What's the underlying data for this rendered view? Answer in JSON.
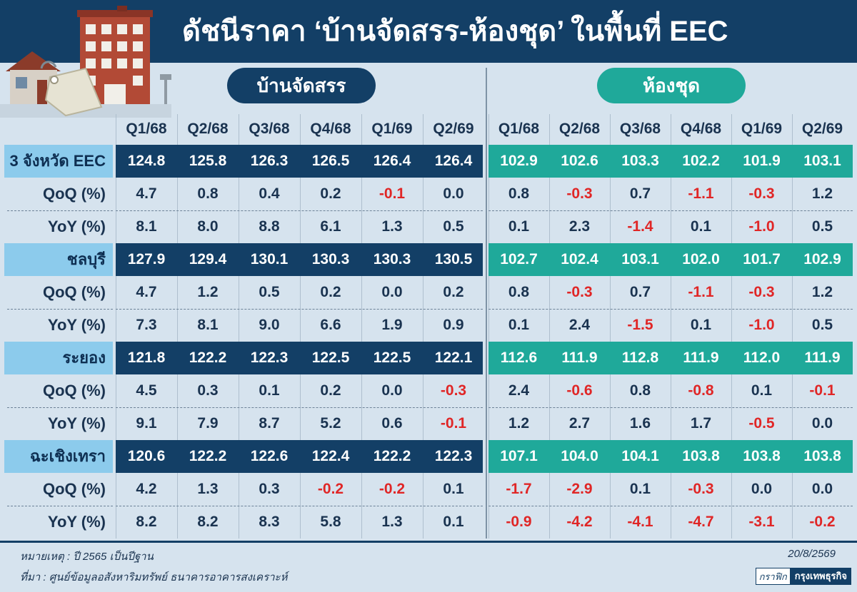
{
  "title": "ดัชนีราคา ‘บ้านจัดสรร-ห้องชุด’ ในพื้นที่ EEC",
  "sections": {
    "house": "บ้านจัดสรร",
    "condo": "ห้องชุด"
  },
  "columns": [
    "Q1/68",
    "Q2/68",
    "Q3/68",
    "Q4/68",
    "Q1/69",
    "Q2/69"
  ],
  "chart_data": {
    "type": "table",
    "rows": [
      {
        "label": "3 จังหวัด EEC",
        "kind": "province",
        "house": [
          "124.8",
          "125.8",
          "126.3",
          "126.5",
          "126.4",
          "126.4"
        ],
        "condo": [
          "102.9",
          "102.6",
          "103.3",
          "102.2",
          "101.9",
          "103.1"
        ]
      },
      {
        "label": "QoQ (%)",
        "kind": "sub",
        "house": [
          "4.7",
          "0.8",
          "0.4",
          "0.2",
          "-0.1",
          "0.0"
        ],
        "condo": [
          "0.8",
          "-0.3",
          "0.7",
          "-1.1",
          "-0.3",
          "1.2"
        ]
      },
      {
        "label": "YoY (%)",
        "kind": "sub",
        "house": [
          "8.1",
          "8.0",
          "8.8",
          "6.1",
          "1.3",
          "0.5"
        ],
        "condo": [
          "0.1",
          "2.3",
          "-1.4",
          "0.1",
          "-1.0",
          "0.5"
        ]
      },
      {
        "label": "ชลบุรี",
        "kind": "province",
        "house": [
          "127.9",
          "129.4",
          "130.1",
          "130.3",
          "130.3",
          "130.5"
        ],
        "condo": [
          "102.7",
          "102.4",
          "103.1",
          "102.0",
          "101.7",
          "102.9"
        ]
      },
      {
        "label": "QoQ (%)",
        "kind": "sub",
        "house": [
          "4.7",
          "1.2",
          "0.5",
          "0.2",
          "0.0",
          "0.2"
        ],
        "condo": [
          "0.8",
          "-0.3",
          "0.7",
          "-1.1",
          "-0.3",
          "1.2"
        ]
      },
      {
        "label": "YoY (%)",
        "kind": "sub",
        "house": [
          "7.3",
          "8.1",
          "9.0",
          "6.6",
          "1.9",
          "0.9"
        ],
        "condo": [
          "0.1",
          "2.4",
          "-1.5",
          "0.1",
          "-1.0",
          "0.5"
        ]
      },
      {
        "label": "ระยอง",
        "kind": "province",
        "house": [
          "121.8",
          "122.2",
          "122.3",
          "122.5",
          "122.5",
          "122.1"
        ],
        "condo": [
          "112.6",
          "111.9",
          "112.8",
          "111.9",
          "112.0",
          "111.9"
        ]
      },
      {
        "label": "QoQ (%)",
        "kind": "sub",
        "house": [
          "4.5",
          "0.3",
          "0.1",
          "0.2",
          "0.0",
          "-0.3"
        ],
        "condo": [
          "2.4",
          "-0.6",
          "0.8",
          "-0.8",
          "0.1",
          "-0.1"
        ]
      },
      {
        "label": "YoY (%)",
        "kind": "sub",
        "house": [
          "9.1",
          "7.9",
          "8.7",
          "5.2",
          "0.6",
          "-0.1"
        ],
        "condo": [
          "1.2",
          "2.7",
          "1.6",
          "1.7",
          "-0.5",
          "0.0"
        ]
      },
      {
        "label": "ฉะเชิงเทรา",
        "kind": "province",
        "house": [
          "120.6",
          "122.2",
          "122.6",
          "122.4",
          "122.2",
          "122.3"
        ],
        "condo": [
          "107.1",
          "104.0",
          "104.1",
          "103.8",
          "103.8",
          "103.8"
        ]
      },
      {
        "label": "QoQ (%)",
        "kind": "sub",
        "house": [
          "4.2",
          "1.3",
          "0.3",
          "-0.2",
          "-0.2",
          "0.1"
        ],
        "condo": [
          "-1.7",
          "-2.9",
          "0.1",
          "-0.3",
          "0.0",
          "0.0"
        ]
      },
      {
        "label": "YoY (%)",
        "kind": "sub",
        "house": [
          "8.2",
          "8.2",
          "8.3",
          "5.8",
          "1.3",
          "0.1"
        ],
        "condo": [
          "-0.9",
          "-4.2",
          "-4.1",
          "-4.7",
          "-3.1",
          "-0.2"
        ]
      }
    ]
  },
  "colors": {
    "navy": "#133f66",
    "teal": "#1fa99a",
    "light_blue": "#8ccbec",
    "negative": "#e02626",
    "background": "#d6e3ee"
  },
  "icons": [
    "house-icon",
    "building-icon",
    "price-tag-icon"
  ],
  "footer": {
    "note": "หมายเหตุ : ปี 2565 เป็นปีฐาน",
    "source": "ที่มา : ศูนย์ข้อมูลอสังหาริมทรัพย์ ธนาคารอาคารสงเคราะห์",
    "date": "20/8/2569",
    "credit_graphic": "กราฟิก",
    "credit_brand": "กรุงเทพธุรกิจ"
  }
}
